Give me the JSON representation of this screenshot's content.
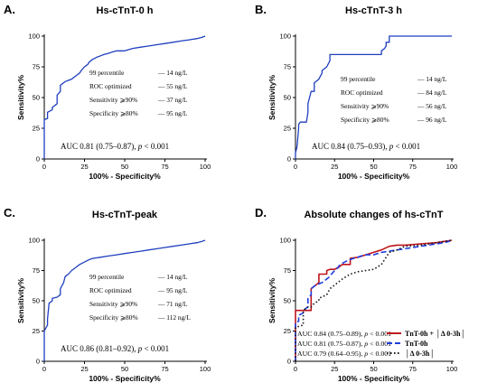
{
  "chart_data": [
    {
      "type": "line",
      "letter": "A.",
      "title": "Hs-cTnT-0 h",
      "xlabel": "100% - Specificity%",
      "ylabel": "Sensitivity%",
      "xlim": [
        0,
        100
      ],
      "ylim": [
        0,
        100
      ],
      "xticks": [
        "0",
        "25",
        "50",
        "75",
        "100"
      ],
      "yticks": [
        "0",
        "25",
        "50",
        "75",
        "100"
      ],
      "color": "#1f3fbf",
      "series": [
        {
          "x": [
            0,
            0,
            2,
            2,
            5,
            5,
            8,
            8,
            10,
            10,
            12,
            13,
            15,
            17,
            18,
            20,
            22,
            23,
            25,
            27,
            28,
            30,
            33,
            35,
            37,
            40,
            42,
            45,
            50,
            55,
            60,
            65,
            70,
            75,
            80,
            85,
            90,
            95,
            98,
            100
          ],
          "y": [
            0,
            32,
            33,
            38,
            40,
            42,
            45,
            52,
            55,
            60,
            62,
            63,
            64,
            65,
            66,
            68,
            70,
            72,
            75,
            77,
            79,
            81,
            83,
            84,
            85,
            86,
            87,
            88,
            88,
            90,
            91,
            92,
            93,
            94,
            95,
            96,
            97,
            98,
            99,
            100
          ]
        }
      ],
      "notes": [
        {
          "label": "99 percentile",
          "value": "14 ng/L"
        },
        {
          "label": "ROC optimized",
          "value": "55 ng/L"
        },
        {
          "label": "Sensitivity ⩾90%",
          "value": "37 ng/L"
        },
        {
          "label": "Specificity ⩾80%",
          "value": "95 ng/L"
        }
      ],
      "auc": {
        "prefix": "AUC 0.81 (0.75–0.87), ",
        "p": "p",
        "suffix": " < 0.001"
      }
    },
    {
      "type": "line",
      "letter": "B.",
      "title": "Hs-cTnT-3 h",
      "xlabel": "100% - Specificity%",
      "ylabel": "Sensitivity%",
      "xlim": [
        0,
        100
      ],
      "ylim": [
        0,
        100
      ],
      "xticks": [
        "0",
        "25",
        "50",
        "75",
        "100"
      ],
      "yticks": [
        "0",
        "25",
        "50",
        "75",
        "100"
      ],
      "color": "#1f3fbf",
      "series": [
        {
          "x": [
            0,
            0,
            1,
            2,
            2,
            3,
            5,
            7,
            8,
            8,
            10,
            12,
            12,
            15,
            17,
            17,
            20,
            22,
            22,
            25,
            50,
            55,
            55,
            57,
            58,
            58,
            60,
            60,
            100
          ],
          "y": [
            0,
            5,
            10,
            25,
            28,
            30,
            30,
            30,
            38,
            45,
            55,
            55,
            62,
            65,
            70,
            72,
            75,
            80,
            85,
            85,
            85,
            85,
            88,
            90,
            92,
            95,
            95,
            100,
            100
          ]
        }
      ],
      "notes": [
        {
          "label": "99 percentile",
          "value": "14 ng/L"
        },
        {
          "label": "ROC optimized",
          "value": "84 ng/L"
        },
        {
          "label": "Sensitivity ⩾90%",
          "value": "56 ng/L"
        },
        {
          "label": "Specificity ⩾80%",
          "value": "96 ng/L"
        }
      ],
      "auc": {
        "prefix": "AUC 0.84 (0.75–0.93), ",
        "p": "p",
        "suffix": " < 0.001"
      }
    },
    {
      "type": "line",
      "letter": "C.",
      "title": "Hs-cTnT-peak",
      "xlabel": "100% - Specificity%",
      "ylabel": "Sensitivity%",
      "xlim": [
        0,
        100
      ],
      "ylim": [
        0,
        100
      ],
      "xticks": [
        "0",
        "25",
        "50",
        "75",
        "100"
      ],
      "yticks": [
        "0",
        "25",
        "50",
        "75",
        "100"
      ],
      "color": "#1f3fbf",
      "series": [
        {
          "x": [
            0,
            0,
            2,
            2,
            3,
            5,
            5,
            8,
            10,
            10,
            12,
            13,
            15,
            17,
            20,
            22,
            25,
            28,
            30,
            35,
            40,
            45,
            50,
            55,
            60,
            65,
            70,
            75,
            80,
            85,
            90,
            95,
            98,
            100
          ],
          "y": [
            0,
            25,
            30,
            35,
            48,
            50,
            52,
            53,
            55,
            60,
            65,
            70,
            72,
            75,
            78,
            80,
            82,
            84,
            85,
            86,
            87,
            88,
            89,
            90,
            91,
            92,
            93,
            94,
            95,
            96,
            97,
            98,
            99,
            100
          ]
        }
      ],
      "notes": [
        {
          "label": "99 percentile",
          "value": "14 ng/L"
        },
        {
          "label": "ROC optimized",
          "value": "95 ng/L"
        },
        {
          "label": "Sensitivity ⩾90%",
          "value": "71 ng/L"
        },
        {
          "label": "Specificity ⩾80%",
          "value": "112 ng/L"
        }
      ],
      "auc": {
        "prefix": "AUC 0.86 (0.81–0.92), ",
        "p": "p",
        "suffix": " < 0.001"
      }
    },
    {
      "type": "line",
      "letter": "D.",
      "title": "Absolute changes of hs-cTnT",
      "xlabel": "100% - Specificity%",
      "ylabel": "Sensitivity%",
      "xlim": [
        0,
        100
      ],
      "ylim": [
        0,
        100
      ],
      "xticks": [
        "0",
        "25",
        "50",
        "75",
        "100"
      ],
      "yticks": [
        "0",
        "25",
        "50",
        "75",
        "100"
      ],
      "series": [
        {
          "name": "TnT-0h + │Δ 0-3h│",
          "color": "#c0141c",
          "dash": "solid",
          "x": [
            0,
            0,
            10,
            10,
            15,
            15,
            20,
            20,
            22,
            25,
            28,
            30,
            35,
            35,
            40,
            45,
            50,
            55,
            60,
            65,
            70,
            80,
            90,
            100
          ],
          "y": [
            0,
            42,
            42,
            60,
            65,
            72,
            72,
            75,
            76,
            76,
            78,
            80,
            80,
            85,
            86,
            88,
            90,
            92,
            95,
            96,
            96,
            97,
            98,
            100
          ]
        },
        {
          "name": "TnT-0h",
          "color": "#1f3fdf",
          "dash": "6,3",
          "x": [
            0,
            0,
            2,
            2,
            5,
            5,
            8,
            8,
            10,
            10,
            12,
            13,
            15,
            17,
            18,
            20,
            22,
            23,
            25,
            27,
            28,
            30,
            33,
            35,
            37,
            40,
            42,
            45,
            50,
            55,
            60,
            65,
            70,
            75,
            80,
            85,
            90,
            95,
            98,
            100
          ],
          "y": [
            0,
            32,
            33,
            38,
            40,
            42,
            45,
            52,
            55,
            60,
            62,
            63,
            64,
            65,
            66,
            68,
            70,
            72,
            75,
            77,
            79,
            81,
            83,
            84,
            85,
            86,
            87,
            88,
            88,
            90,
            91,
            92,
            93,
            94,
            95,
            96,
            97,
            98,
            99,
            100
          ]
        },
        {
          "name": "│Δ 0-3h│",
          "color": "#111111",
          "dash": "1.5,2.5",
          "x": [
            0,
            0,
            5,
            5,
            8,
            10,
            12,
            15,
            15,
            20,
            22,
            25,
            30,
            35,
            40,
            45,
            50,
            55,
            60,
            65,
            70,
            80,
            90,
            100
          ],
          "y": [
            0,
            28,
            30,
            42,
            45,
            45,
            48,
            50,
            52,
            55,
            60,
            63,
            68,
            72,
            74,
            75,
            76,
            80,
            90,
            92,
            95,
            96,
            98,
            100
          ]
        }
      ],
      "auc_lines": [
        {
          "prefix": "AUC 0.84 (0.75–0.89), ",
          "p": "p",
          "suffix": " < 0.001"
        },
        {
          "prefix": "AUC 0.81 (0.75–0.87), ",
          "p": "p",
          "suffix": " < 0.001"
        },
        {
          "prefix": "AUC 0.79 (0.64–0.95), ",
          "p": "p",
          "suffix": " < 0.001"
        }
      ]
    }
  ]
}
